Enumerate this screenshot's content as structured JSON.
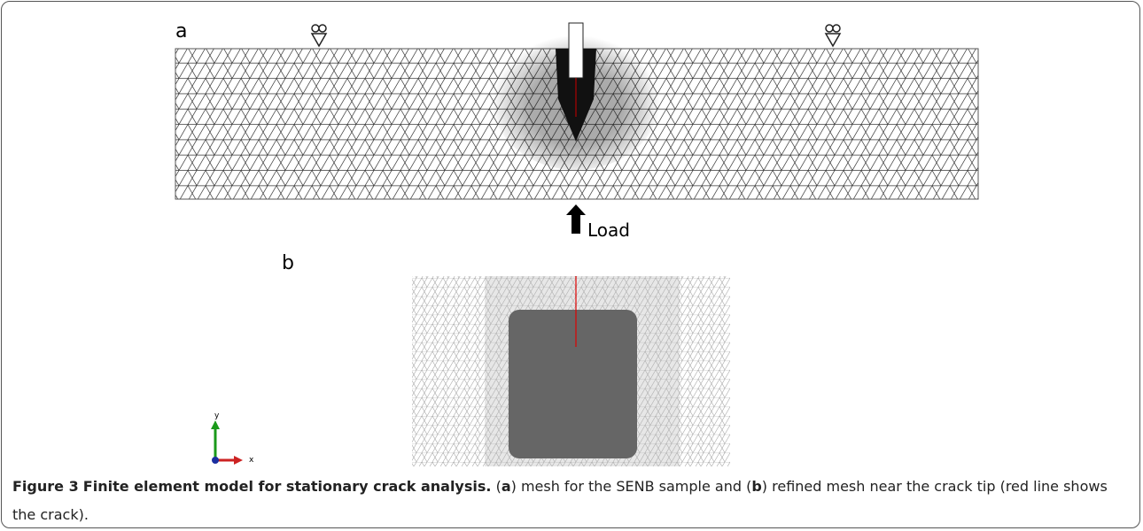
{
  "panel_a": {
    "label": "a",
    "load_label": "Load"
  },
  "panel_b": {
    "label": "b",
    "axis_labels": {
      "y": "y",
      "x": "x"
    }
  },
  "caption": {
    "figure_label": "Figure 3",
    "title": "Finite element model for stationary crack analysis.",
    "parts": [
      "(",
      "a",
      ") mesh for the SENB sample and (",
      "b",
      ") refined mesh near the crack tip (red line shows the crack)."
    ]
  }
}
